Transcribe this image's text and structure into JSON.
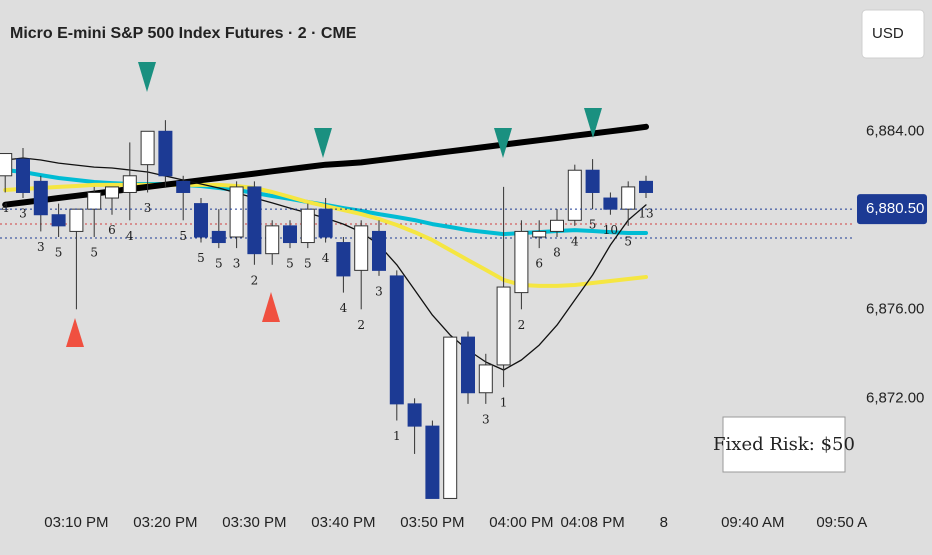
{
  "chart_data": {
    "type": "candlestick",
    "title": "Micro E-mini S&P 500 Index Futures · 2 · CME",
    "currency": "USD",
    "annotation": "Fixed Risk: $50",
    "categories": [
      null,
      null,
      null,
      null,
      "03:10 PM",
      null,
      null,
      null,
      null,
      "03:20 PM",
      null,
      null,
      null,
      null,
      "03:30 PM",
      null,
      null,
      null,
      null,
      "03:40 PM",
      null,
      null,
      null,
      null,
      "03:50 PM",
      null,
      null,
      null,
      null,
      "04:00 PM",
      null,
      null,
      null,
      "04:08 PM",
      null,
      null,
      null,
      "8",
      null,
      null,
      null,
      null,
      "09:40 AM",
      null,
      null,
      null,
      null,
      "09:50 A"
    ],
    "open": [
      6882.0,
      6882.75,
      6881.75,
      6880.25,
      6879.5,
      6880.5,
      6881.0,
      6881.25,
      6882.5,
      6884.0,
      6881.75,
      6880.75,
      6879.5,
      6879.25,
      6881.5,
      6878.5,
      6879.75,
      6879.0,
      6880.5,
      6879.0,
      6877.75,
      6879.5,
      6877.5,
      6871.75,
      6870.75,
      6867.5,
      6874.75,
      6872.25,
      6873.5,
      6876.75,
      6879.25,
      6879.5,
      6880.0,
      6882.25,
      6881.0,
      6880.5,
      6881.75,
      null,
      null,
      null,
      null,
      null,
      null,
      null,
      null,
      null,
      null,
      null
    ],
    "high": [
      6883.0,
      6883.25,
      6882.0,
      6880.75,
      6880.5,
      6881.5,
      6881.5,
      6883.5,
      6884.0,
      6884.5,
      6882.0,
      6881.0,
      6880.5,
      6881.75,
      6881.75,
      6880.0,
      6880.0,
      6880.75,
      6881.0,
      6879.25,
      6880.0,
      6880.0,
      6877.75,
      6872.0,
      6871.0,
      6874.75,
      6875.0,
      6874.0,
      6881.5,
      6880.0,
      6880.0,
      6880.5,
      6882.5,
      6882.75,
      6881.25,
      6881.75,
      6882.0,
      null,
      null,
      null,
      null,
      null,
      null,
      null,
      null,
      null,
      null,
      null
    ],
    "low": [
      6881.25,
      6881.0,
      6879.5,
      6879.25,
      6876.0,
      6879.25,
      6880.25,
      6880.0,
      6881.25,
      6881.5,
      6880.0,
      6879.0,
      6878.75,
      6878.75,
      6878.0,
      6878.0,
      6878.75,
      6878.75,
      6879.0,
      6876.75,
      6876.0,
      6877.5,
      6871.0,
      6869.5,
      6867.5,
      6867.5,
      6871.75,
      6871.75,
      6872.5,
      6876.0,
      6878.75,
      6879.25,
      6879.75,
      6880.5,
      6880.25,
      6879.75,
      6881.0,
      null,
      null,
      null,
      null,
      null,
      null,
      null,
      null,
      null,
      null,
      null
    ],
    "close": [
      6883.0,
      6881.25,
      6880.25,
      6879.75,
      6880.5,
      6881.25,
      6881.5,
      6882.0,
      6884.0,
      6882.0,
      6881.25,
      6879.25,
      6879.0,
      6881.5,
      6878.5,
      6879.75,
      6879.0,
      6880.5,
      6879.25,
      6877.5,
      6879.75,
      6877.75,
      6871.75,
      6870.75,
      6867.5,
      6874.75,
      6872.25,
      6873.5,
      6877.0,
      6879.5,
      6879.5,
      6880.0,
      6882.25,
      6881.25,
      6880.5,
      6881.5,
      6881.25,
      null,
      null,
      null,
      null,
      null,
      null,
      null,
      null,
      null,
      null,
      null
    ],
    "counts": [
      4,
      3,
      3,
      5,
      null,
      5,
      6,
      4,
      3,
      null,
      5,
      5,
      5,
      3,
      2,
      null,
      5,
      5,
      4,
      4,
      2,
      3,
      1,
      null,
      null,
      null,
      null,
      3,
      1,
      2,
      6,
      8,
      4,
      5,
      10,
      5,
      13,
      null,
      null,
      null,
      null,
      null,
      null,
      null,
      null,
      null,
      null,
      null
    ],
    "up_color": "#ffffff",
    "down_color": "#1c3a94",
    "series": [
      {
        "color": "#00bcd4",
        "width": 4,
        "values": [
          6882.26,
          6882.17,
          6882.03,
          6881.9,
          6881.81,
          6881.72,
          6881.67,
          6881.63,
          6881.63,
          6881.63,
          6881.59,
          6881.54,
          6881.45,
          6881.36,
          6881.23,
          6881.09,
          6880.96,
          6880.82,
          6880.69,
          6880.55,
          6880.42,
          6880.28,
          6880.15,
          6880.01,
          6879.83,
          6879.7,
          6879.56,
          6879.47,
          6879.38,
          6879.43,
          6879.47,
          6879.52,
          6879.56,
          6879.52,
          6879.47,
          6879.43,
          6879.43,
          null,
          null,
          null,
          null,
          null,
          null,
          null,
          null,
          null,
          null,
          null
        ]
      },
      {
        "color": "#f5e642",
        "width": 4,
        "values": [
          6881.36,
          6881.41,
          6881.45,
          6881.5,
          6881.54,
          6881.59,
          6881.59,
          6881.59,
          6881.59,
          6881.59,
          6881.59,
          6881.59,
          6881.59,
          6881.54,
          6881.45,
          6881.27,
          6881.05,
          6880.82,
          6880.64,
          6880.46,
          6880.28,
          6880.06,
          6879.79,
          6879.47,
          6879.11,
          6878.66,
          6878.21,
          6877.77,
          6877.32,
          6877.09,
          6877.05,
          6877.05,
          6877.09,
          6877.18,
          6877.27,
          6877.36,
          6877.45,
          null,
          null,
          null,
          null,
          null,
          null,
          null,
          null,
          null,
          null,
          null
        ]
      },
      {
        "color": "#000000",
        "width": 6,
        "values": [
          6880.7,
          6880.8,
          6880.9,
          6881.0,
          6881.1,
          6881.2,
          6881.3,
          6881.4,
          6881.5,
          6881.6,
          6881.7,
          6881.8,
          6881.9,
          6882.0,
          6882.1,
          6882.2,
          6882.3,
          6882.4,
          6882.5,
          6882.55,
          6882.6,
          6882.7,
          6882.8,
          6882.9,
          6883.0,
          6883.1,
          6883.2,
          6883.3,
          6883.4,
          6883.5,
          6883.6,
          6883.7,
          6883.8,
          6883.9,
          6884.0,
          6884.1,
          6884.2,
          null,
          null,
          null,
          null,
          null,
          null,
          null,
          null,
          null,
          null,
          null
        ]
      },
      {
        "color": "#111111",
        "width": 1.3,
        "values": [
          6882.71,
          6882.8,
          6882.71,
          6882.57,
          6882.48,
          6882.39,
          6882.35,
          6882.26,
          6882.17,
          6881.99,
          6881.81,
          6881.63,
          6881.45,
          6881.23,
          6881.0,
          6880.78,
          6880.55,
          6880.33,
          6880.1,
          6879.83,
          6879.47,
          6878.89,
          6878.0,
          6876.87,
          6875.74,
          6874.84,
          6874.17,
          6873.63,
          6873.27,
          6873.72,
          6874.39,
          6875.29,
          6876.42,
          6877.54,
          6878.89,
          6880.01,
          6880.69,
          null,
          null,
          null,
          null,
          null,
          null,
          null,
          null,
          null,
          null,
          null
        ]
      }
    ],
    "ylim": [
      6867.43,
      6889.9
    ],
    "yticks": [
      {
        "value": 6884,
        "label": "6,884.00"
      },
      {
        "value": 6876,
        "label": "6,876.00"
      },
      {
        "value": 6872,
        "label": "6,872.00"
      }
    ],
    "last_price": {
      "value": 6880.5,
      "label": "6,880.50"
    },
    "last_price_color": "#1c3a94"
  }
}
